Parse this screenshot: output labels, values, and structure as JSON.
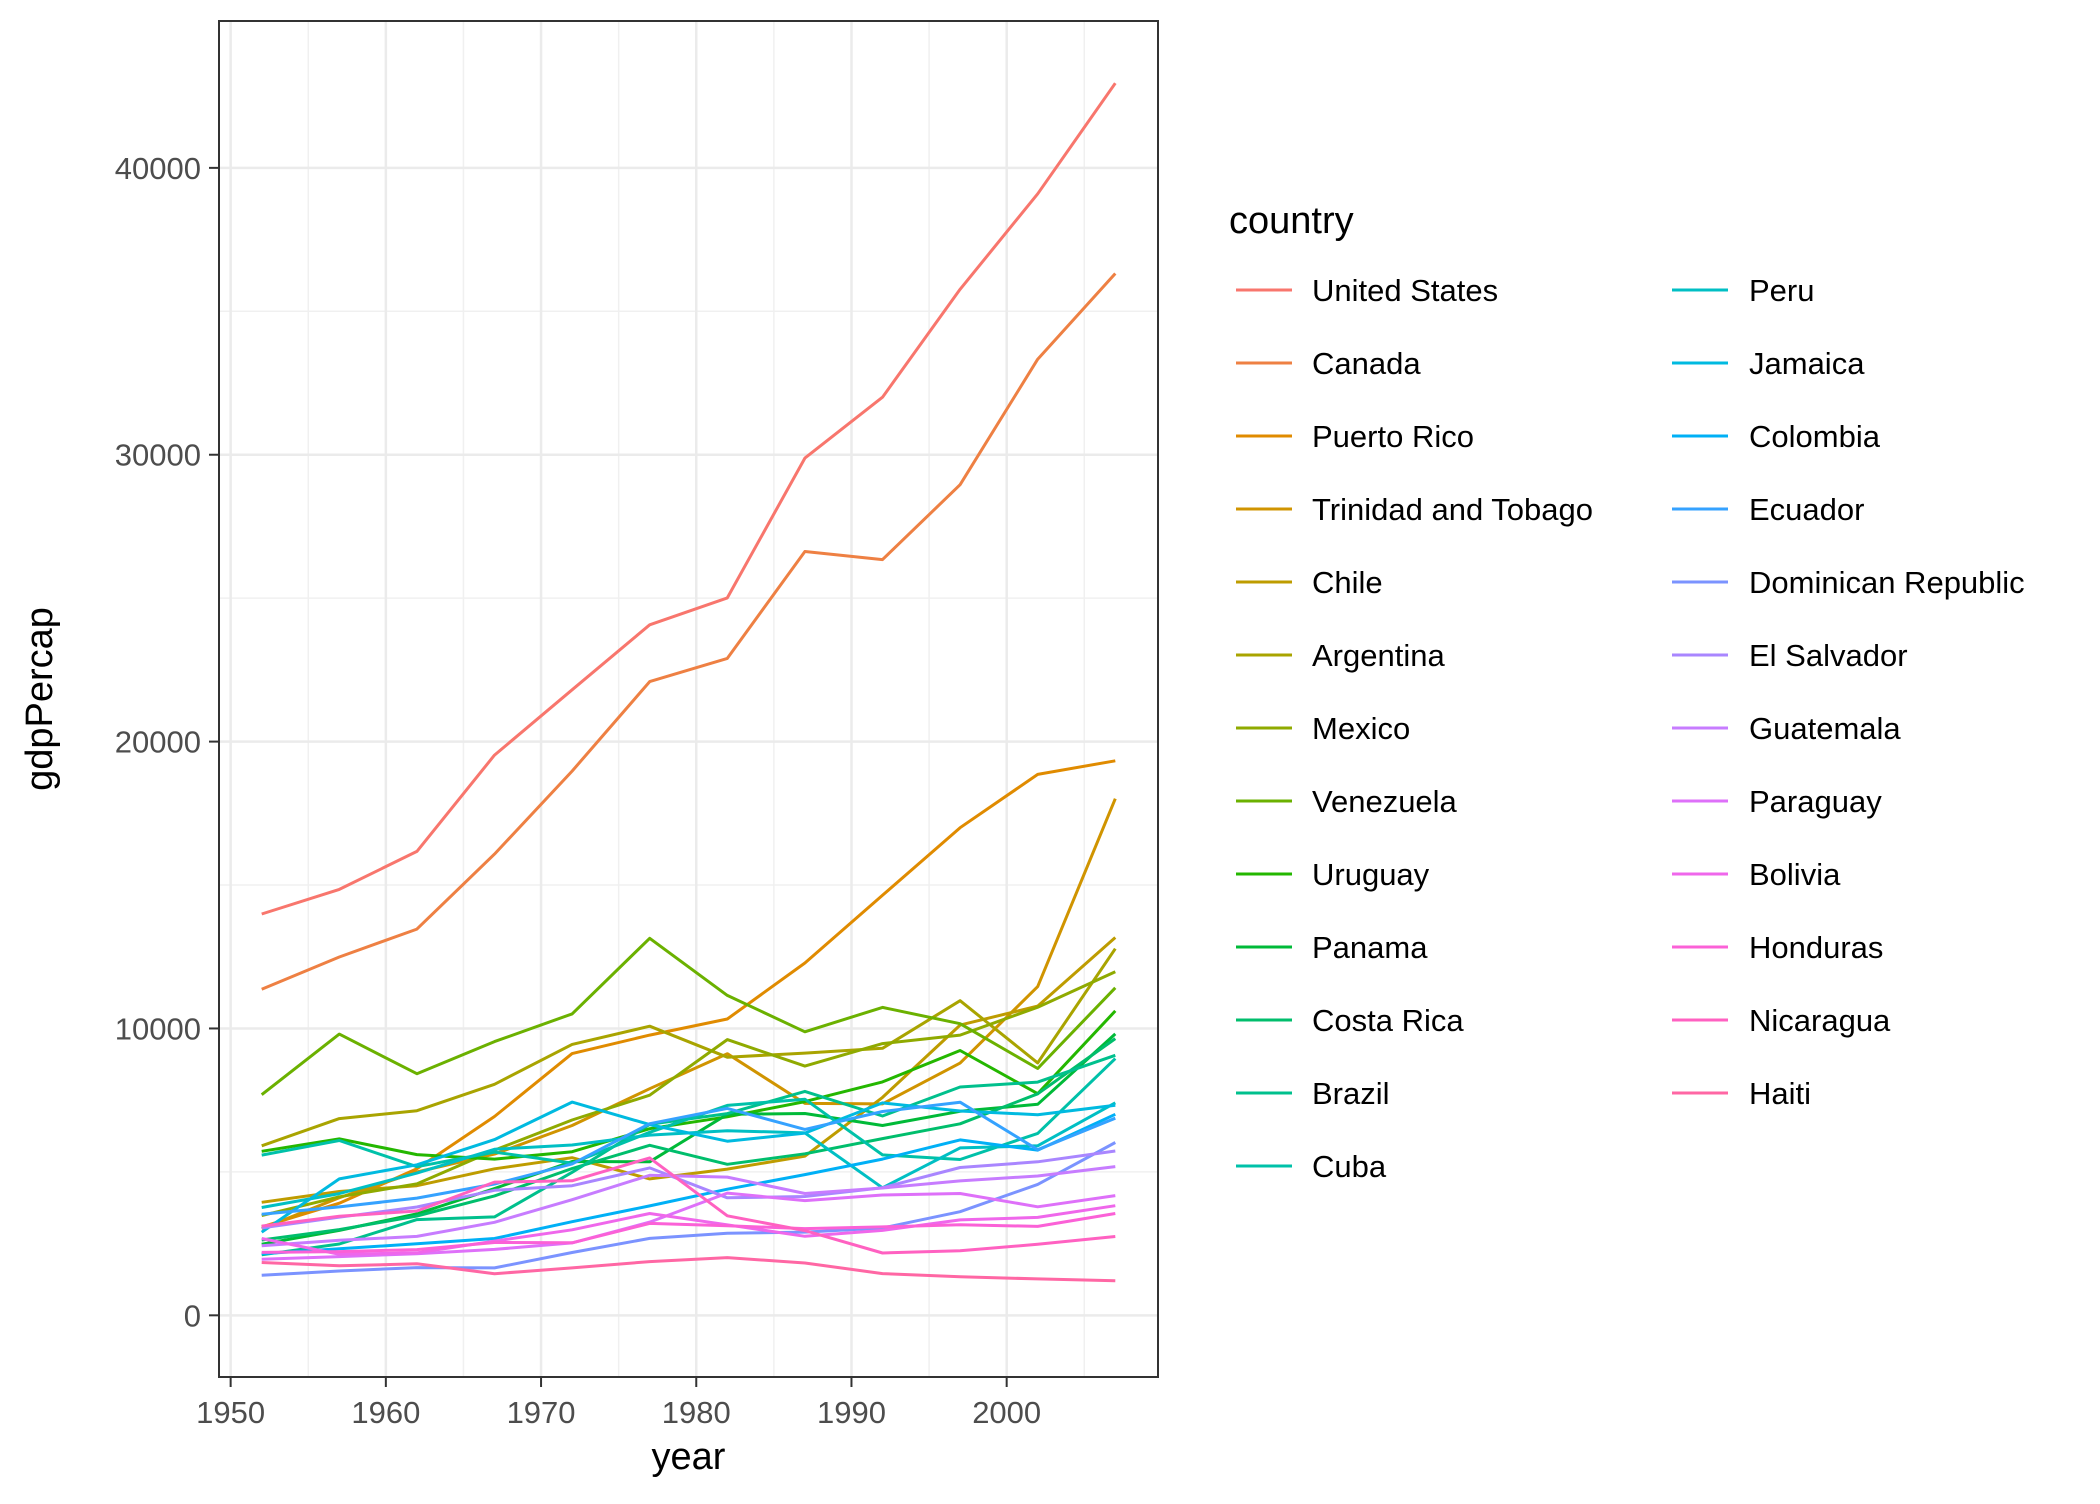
{
  "chart_data": {
    "type": "line",
    "xlabel": "year",
    "ylabel": "gdpPercap",
    "xlim": [
      1949.25,
      2009.75
    ],
    "ylim": [
      -2150,
      45120
    ],
    "x_ticks": [
      1950,
      1960,
      1970,
      1980,
      1990,
      2000
    ],
    "y_ticks": [
      0,
      10000,
      20000,
      30000,
      40000
    ],
    "grid": true,
    "legend_title": "country",
    "legend_position": "right",
    "x": [
      1952,
      1957,
      1962,
      1967,
      1972,
      1977,
      1982,
      1987,
      1992,
      1997,
      2002,
      2007
    ],
    "series": [
      {
        "name": "United States",
        "color": "#F8766D",
        "values": [
          13990,
          14847,
          16173,
          19530,
          21806,
          24073,
          25010,
          29884,
          32004,
          35767,
          39097,
          42952
        ]
      },
      {
        "name": "Canada",
        "color": "#EE8043",
        "values": [
          11367,
          12490,
          13462,
          16077,
          18971,
          22091,
          22899,
          26627,
          26343,
          28955,
          33329,
          36319
        ]
      },
      {
        "name": "Puerto Rico",
        "color": "#E08B00",
        "values": [
          3082,
          3908,
          5108,
          6930,
          9124,
          9770,
          10331,
          12281,
          14642,
          16999,
          18856,
          19329
        ]
      },
      {
        "name": "Trinidad and Tobago",
        "color": "#D09400",
        "values": [
          3024,
          4100,
          4997,
          5621,
          6619,
          7899,
          9119,
          7389,
          7370,
          8793,
          11461,
          18009
        ]
      },
      {
        "name": "Chile",
        "color": "#BE9C00",
        "values": [
          3940,
          4316,
          4519,
          5107,
          5494,
          4757,
          5096,
          5547,
          7597,
          10118,
          10779,
          13172
        ]
      },
      {
        "name": "Argentina",
        "color": "#A9A400",
        "values": [
          5911,
          6857,
          7133,
          8053,
          9443,
          10079,
          8998,
          9140,
          9308,
          10967,
          8798,
          12779
        ]
      },
      {
        "name": "Mexico",
        "color": "#8FAA00",
        "values": [
          3478,
          4132,
          4582,
          5755,
          6809,
          7675,
          9611,
          8688,
          9472,
          9767,
          10742,
          11978
        ]
      },
      {
        "name": "Venezuela",
        "color": "#6BB100",
        "values": [
          7690,
          9803,
          8423,
          9542,
          10506,
          13144,
          11152,
          9884,
          10734,
          10165,
          8605,
          11416
        ]
      },
      {
        "name": "Uruguay",
        "color": "#24B700",
        "values": [
          5717,
          6151,
          5603,
          5445,
          5703,
          6504,
          6920,
          7452,
          8137,
          9231,
          7727,
          10611
        ]
      },
      {
        "name": "Panama",
        "color": "#00BA38",
        "values": [
          2480,
          2961,
          3537,
          4421,
          5364,
          5351,
          7009,
          7034,
          6619,
          7114,
          7356,
          9809
        ]
      },
      {
        "name": "Costa Rica",
        "color": "#00BE6C",
        "values": [
          2627,
          2990,
          3461,
          4162,
          5118,
          5927,
          5263,
          5629,
          6161,
          6677,
          7723,
          9645
        ]
      },
      {
        "name": "Brazil",
        "color": "#00C08D",
        "values": [
          2109,
          2487,
          3337,
          3430,
          4986,
          6660,
          7031,
          7807,
          6950,
          7958,
          8131,
          9066
        ]
      },
      {
        "name": "Cuba",
        "color": "#00C1A9",
        "values": [
          5587,
          6093,
          5181,
          5690,
          5305,
          6380,
          7317,
          7533,
          5593,
          5432,
          6341,
          8948
        ]
      },
      {
        "name": "Peru",
        "color": "#00BFC4",
        "values": [
          3759,
          4245,
          4957,
          5788,
          5938,
          6281,
          6435,
          6361,
          4446,
          5838,
          5909,
          7409
        ]
      },
      {
        "name": "Jamaica",
        "color": "#00BAE0",
        "values": [
          2899,
          4756,
          5246,
          6124,
          7434,
          6650,
          6069,
          6351,
          7405,
          7122,
          6995,
          7321
        ]
      },
      {
        "name": "Colombia",
        "color": "#00B0F6",
        "values": [
          2144,
          2323,
          2493,
          2679,
          3265,
          3816,
          4398,
          4904,
          5445,
          6117,
          5756,
          7007
        ]
      },
      {
        "name": "Ecuador",
        "color": "#35A2FF",
        "values": [
          3522,
          3780,
          4086,
          4579,
          5280,
          6680,
          7214,
          6482,
          7104,
          7430,
          5773,
          6873
        ]
      },
      {
        "name": "Dominican Republic",
        "color": "#7B93FF",
        "values": [
          1398,
          1544,
          1662,
          1654,
          2190,
          2681,
          2861,
          2900,
          3045,
          3614,
          4564,
          6025
        ]
      },
      {
        "name": "El Salvador",
        "color": "#A986FF",
        "values": [
          3048,
          3421,
          3777,
          4359,
          4520,
          5138,
          4098,
          4141,
          4444,
          5154,
          5352,
          5728
        ]
      },
      {
        "name": "Guatemala",
        "color": "#C77CFF",
        "values": [
          2428,
          2617,
          2750,
          3243,
          4031,
          4880,
          4820,
          4246,
          4440,
          4685,
          4858,
          5186
        ]
      },
      {
        "name": "Paraguay",
        "color": "#DE70F9",
        "values": [
          1952,
          2047,
          2148,
          2299,
          2523,
          3249,
          4259,
          3998,
          4196,
          4248,
          3784,
          4173
        ]
      },
      {
        "name": "Bolivia",
        "color": "#EF67EB",
        "values": [
          2677,
          2128,
          2181,
          2587,
          2980,
          3548,
          3157,
          2754,
          2962,
          3326,
          3413,
          3822
        ]
      },
      {
        "name": "Honduras",
        "color": "#FB61D7",
        "values": [
          2195,
          2220,
          2292,
          2538,
          2529,
          3203,
          3121,
          3023,
          3082,
          3160,
          3099,
          3548
        ]
      },
      {
        "name": "Nicaragua",
        "color": "#FF61C1",
        "values": [
          3112,
          3457,
          3635,
          4643,
          4689,
          5487,
          3470,
          2955,
          2171,
          2253,
          2475,
          2749
        ]
      },
      {
        "name": "Haiti",
        "color": "#FF67A4",
        "values": [
          1840,
          1726,
          1796,
          1452,
          1654,
          1874,
          2012,
          1823,
          1456,
          1342,
          1270,
          1202
        ]
      }
    ]
  }
}
